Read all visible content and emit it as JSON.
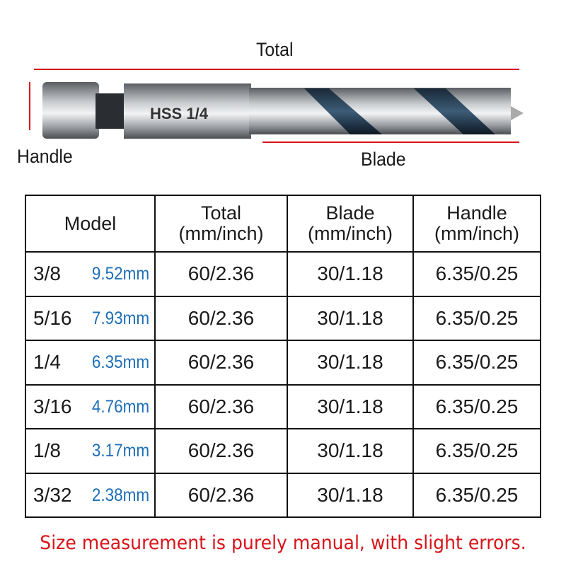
{
  "diagram": {
    "total_label": "Total",
    "handle_label": "Handle",
    "blade_label": "Blade",
    "shank_marking": "HSS 1/4",
    "accent_color": "#d8141a"
  },
  "table": {
    "headers": [
      {
        "line1": "Model",
        "line2": ""
      },
      {
        "line1": "Total",
        "line2": "(mm/inch)"
      },
      {
        "line1": "Blade",
        "line2": "(mm/inch)"
      },
      {
        "line1": "Handle",
        "line2": "(mm/inch)"
      }
    ],
    "rows": [
      {
        "model": "3/8",
        "mm": "9.52mm",
        "total": "60/2.36",
        "blade": "30/1.18",
        "handle": "6.35/0.25"
      },
      {
        "model": "5/16",
        "mm": "7.93mm",
        "total": "60/2.36",
        "blade": "30/1.18",
        "handle": "6.35/0.25"
      },
      {
        "model": "1/4",
        "mm": "6.35mm",
        "total": "60/2.36",
        "blade": "30/1.18",
        "handle": "6.35/0.25"
      },
      {
        "model": "3/16",
        "mm": "4.76mm",
        "total": "60/2.36",
        "blade": "30/1.18",
        "handle": "6.35/0.25"
      },
      {
        "model": "1/8",
        "mm": "3.17mm",
        "total": "60/2.36",
        "blade": "30/1.18",
        "handle": "6.35/0.25"
      },
      {
        "model": "3/32",
        "mm": "2.38mm",
        "total": "60/2.36",
        "blade": "30/1.18",
        "handle": "6.35/0.25"
      }
    ],
    "mm_color": "#1e6fb8"
  },
  "note": "Size measurement is purely manual, with slight errors."
}
